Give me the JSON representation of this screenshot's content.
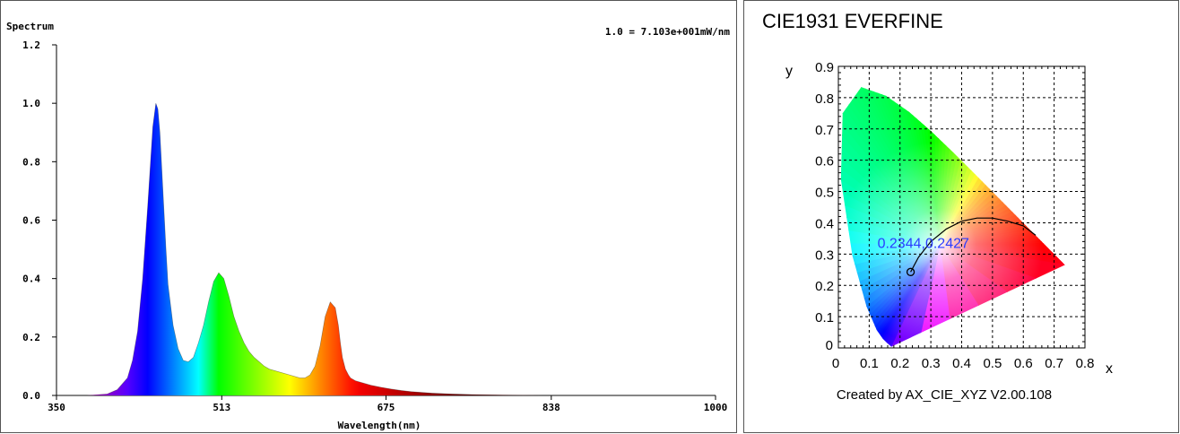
{
  "chart_data": [
    {
      "type": "line",
      "title": "Spectrum",
      "scale_note": "1.0 = 7.103e+001mW/nm",
      "xlabel": "Wavelength(nm)",
      "ylabel": "",
      "xlim": [
        350,
        1000
      ],
      "ylim": [
        0,
        1.2
      ],
      "x_ticks": [
        "350",
        "513",
        "675",
        "838",
        "1000"
      ],
      "y_ticks": [
        "0.0",
        "0.2",
        "0.4",
        "0.6",
        "0.8",
        "1.0",
        "1.2"
      ],
      "fill": "wavelength-gradient",
      "series": [
        {
          "x": [
            350,
            380,
            400,
            410,
            420,
            425,
            430,
            435,
            440,
            445,
            448,
            450,
            452,
            455,
            458,
            460,
            465,
            470,
            475,
            480,
            485,
            490,
            495,
            500,
            505,
            510,
            515,
            520,
            525,
            530,
            535,
            540,
            545,
            550,
            555,
            560,
            565,
            570,
            575,
            580,
            585,
            590,
            595,
            600,
            605,
            610,
            615,
            620,
            625,
            628,
            630,
            632,
            635,
            638,
            640,
            645,
            650,
            655,
            660,
            670,
            680,
            690,
            700,
            720,
            740,
            760,
            780,
            800,
            830,
            860,
            900,
            950,
            1000
          ],
          "y": [
            0.0,
            0.0,
            0.005,
            0.02,
            0.06,
            0.12,
            0.22,
            0.4,
            0.65,
            0.92,
            1.0,
            0.98,
            0.9,
            0.7,
            0.5,
            0.38,
            0.24,
            0.16,
            0.12,
            0.115,
            0.13,
            0.18,
            0.24,
            0.32,
            0.39,
            0.42,
            0.4,
            0.34,
            0.27,
            0.22,
            0.18,
            0.15,
            0.13,
            0.115,
            0.1,
            0.09,
            0.085,
            0.08,
            0.075,
            0.07,
            0.065,
            0.06,
            0.06,
            0.07,
            0.1,
            0.17,
            0.27,
            0.32,
            0.3,
            0.24,
            0.18,
            0.13,
            0.09,
            0.07,
            0.06,
            0.05,
            0.045,
            0.04,
            0.035,
            0.028,
            0.022,
            0.017,
            0.013,
            0.008,
            0.005,
            0.003,
            0.002,
            0.001,
            0.0,
            0.0,
            0.0,
            0.0,
            0.0
          ]
        }
      ]
    },
    {
      "type": "scatter",
      "title": "CIE1931  EVERFINE",
      "xlabel": "x",
      "ylabel": "y",
      "xlim": [
        0,
        0.8
      ],
      "ylim": [
        0,
        0.9
      ],
      "x_ticks": [
        "0",
        "0.1",
        "0.2",
        "0.3",
        "0.4",
        "0.5",
        "0.6",
        "0.7",
        "0.8"
      ],
      "y_ticks": [
        "0",
        "0.1",
        "0.2",
        "0.3",
        "0.4",
        "0.5",
        "0.6",
        "0.7",
        "0.8",
        "0.9"
      ],
      "grid": true,
      "point": {
        "x": 0.2344,
        "y": 0.2427,
        "label": "0.2344,0.2427"
      },
      "footer": "Created by AX_CIE_XYZ V2.00.108",
      "planckian_locus": {
        "x": [
          0.2344,
          0.26,
          0.3,
          0.35,
          0.4,
          0.45,
          0.5,
          0.55,
          0.6,
          0.64
        ],
        "y": [
          0.2427,
          0.29,
          0.34,
          0.38,
          0.405,
          0.415,
          0.415,
          0.405,
          0.39,
          0.36
        ]
      },
      "spectral_locus": {
        "x": [
          0.1741,
          0.1738,
          0.1736,
          0.1733,
          0.1726,
          0.1714,
          0.1689,
          0.1644,
          0.1566,
          0.144,
          0.1241,
          0.0913,
          0.0454,
          0.0082,
          0.0139,
          0.0743,
          0.1547,
          0.2296,
          0.3016,
          0.3731,
          0.4441,
          0.5125,
          0.5752,
          0.627,
          0.6658,
          0.6915,
          0.7079,
          0.719,
          0.726,
          0.7347
        ],
        "y": [
          0.005,
          0.0049,
          0.0049,
          0.0048,
          0.0048,
          0.0051,
          0.0069,
          0.0109,
          0.0177,
          0.0297,
          0.0578,
          0.1327,
          0.295,
          0.5384,
          0.7502,
          0.8338,
          0.8059,
          0.7543,
          0.6923,
          0.6245,
          0.5547,
          0.4866,
          0.4242,
          0.3725,
          0.334,
          0.3083,
          0.292,
          0.2809,
          0.274,
          0.2653
        ]
      }
    }
  ]
}
